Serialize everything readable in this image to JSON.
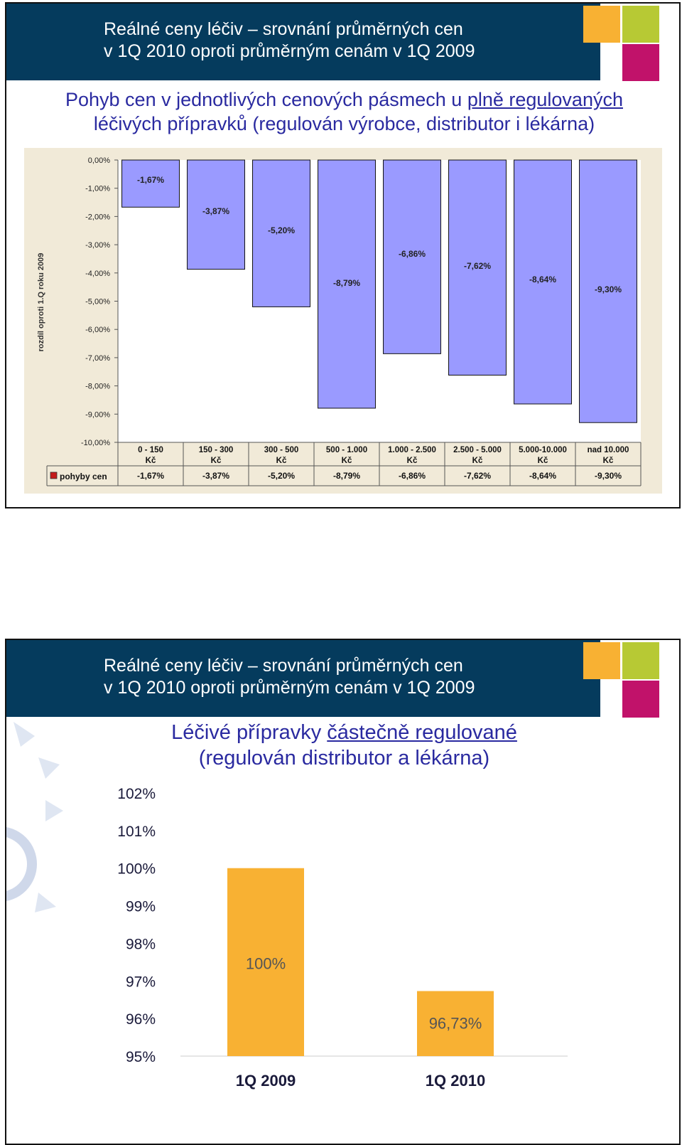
{
  "slides": [
    {
      "header": {
        "line1": "Reálné ceny léčiv – srovnání průměrných cen",
        "line2": "v 1Q 2010 oproti průměrným cenám v 1Q 2009"
      },
      "subtitle": {
        "line1_a": "Pohyb cen v jednotlivých cenových pásmech u ",
        "line1_u": "plně regulovaných",
        "line2": "léčivých přípravků (regulován výrobce, distributor i lékárna)"
      }
    },
    {
      "header": {
        "line1": "Reálné ceny léčiv – srovnání průměrných cen",
        "line2": "v 1Q 2010 oproti průměrným cenám v 1Q 2009"
      },
      "subtitle": {
        "line1_a": "Léčivé přípravky ",
        "line1_u": "částečně regulované",
        "line2": "(regulován distributor a lékárna)"
      }
    }
  ],
  "colors": {
    "header_bg": "#053b5d",
    "square_orange": "#f8b133",
    "square_green": "#b7c934",
    "square_magenta": "#c1126a",
    "subtitle_blue": "#2a2aa0",
    "bar1": "#9a9aff",
    "chart1_bg": "#f1ead8",
    "bar2": "#f8b133"
  },
  "chart_data": [
    {
      "type": "bar",
      "title": "",
      "ylabel": "rozdíl oproti 1.Q roku 2009",
      "ylim": [
        -10,
        0
      ],
      "yticks": [
        "0,00%",
        "-1,00%",
        "-2,00%",
        "-3,00%",
        "-4,00%",
        "-5,00%",
        "-6,00%",
        "-7,00%",
        "-8,00%",
        "-9,00%",
        "-10,00%"
      ],
      "categories": [
        [
          "0 - 150",
          "Kč"
        ],
        [
          "150 - 300",
          "Kč"
        ],
        [
          "300 - 500",
          "Kč"
        ],
        [
          "500 - 1.000",
          "Kč"
        ],
        [
          "1.000 - 2.500",
          "Kč"
        ],
        [
          "2.500 - 5.000",
          "Kč"
        ],
        [
          "5.000-10.000",
          "Kč"
        ],
        [
          "nad 10.000",
          "Kč"
        ]
      ],
      "series": [
        {
          "name": "pohyby cen",
          "values": [
            -1.67,
            -3.87,
            -5.2,
            -8.79,
            -6.86,
            -7.62,
            -8.64,
            -9.3
          ],
          "labels": [
            "-1,67%",
            "-3,87%",
            "-5,20%",
            "-8,79%",
            "-6,86%",
            "-7,62%",
            "-8,64%",
            "-9,30%"
          ]
        }
      ]
    },
    {
      "type": "bar",
      "title": "",
      "ylim": [
        95,
        102
      ],
      "yticks": [
        "102%",
        "101%",
        "100%",
        "99%",
        "98%",
        "97%",
        "96%",
        "95%"
      ],
      "categories": [
        "1Q 2009",
        "1Q 2010"
      ],
      "values": [
        100,
        96.73
      ],
      "labels": [
        "100%",
        "96,73%"
      ]
    }
  ]
}
